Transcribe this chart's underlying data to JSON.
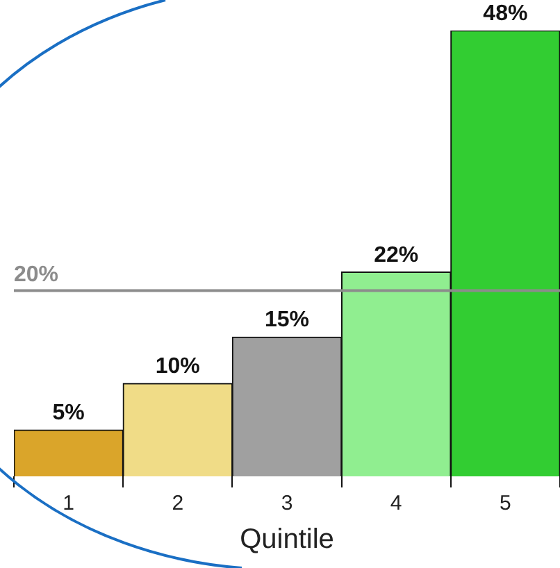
{
  "chart_data": {
    "type": "bar",
    "xlabel": "Quintile",
    "categories": [
      "1",
      "2",
      "3",
      "4",
      "5"
    ],
    "values": [
      5,
      10,
      15,
      22,
      48
    ],
    "colors": [
      "#daa52a",
      "#f0dc87",
      "#a0a0a0",
      "#90ee90",
      "#32cd32"
    ],
    "value_labels": [
      "5%",
      "10%",
      "15%",
      "22%",
      "48%"
    ],
    "ref_lines": [
      {
        "axis": "y",
        "value": 20,
        "label": "20%",
        "color": "#8c8c8c"
      }
    ],
    "grid": false,
    "legend": false
  }
}
